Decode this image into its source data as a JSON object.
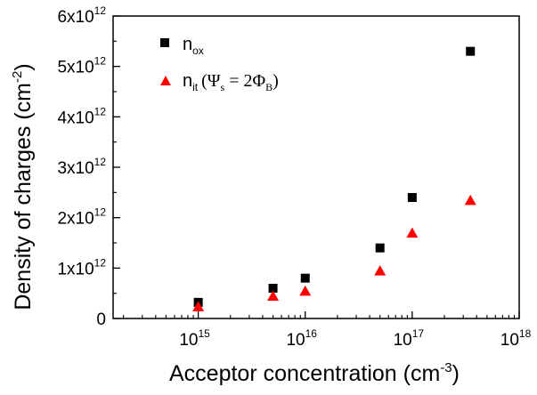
{
  "chart_data": {
    "type": "scatter",
    "xlabel": "Acceptor concentration",
    "xlabel_unit_base": "(cm",
    "xlabel_unit_exp": "-3",
    "xlabel_unit_close": ")",
    "ylabel": "Density of charges",
    "ylabel_unit_base": "(cm",
    "ylabel_unit_exp": "-2",
    "ylabel_unit_close": ")",
    "x_scale": "log",
    "xlim": [
      160000000000000.0,
      1e+18
    ],
    "ylim": [
      0,
      6000000000000.0
    ],
    "x_ticks": [
      {
        "value": 1000000000000000.0,
        "base": "10",
        "exp": "15"
      },
      {
        "value": 1e+16,
        "base": "10",
        "exp": "16"
      },
      {
        "value": 1e+17,
        "base": "10",
        "exp": "17"
      },
      {
        "value": 1e+18,
        "base": "10",
        "exp": "18"
      }
    ],
    "y_ticks": [
      {
        "value": 0,
        "label": "0",
        "exp": ""
      },
      {
        "value": 1000000000000.0,
        "label": "1x10",
        "exp": "12"
      },
      {
        "value": 2000000000000.0,
        "label": "2x10",
        "exp": "12"
      },
      {
        "value": 3000000000000.0,
        "label": "3x10",
        "exp": "12"
      },
      {
        "value": 4000000000000.0,
        "label": "4x10",
        "exp": "12"
      },
      {
        "value": 5000000000000.0,
        "label": "5x10",
        "exp": "12"
      },
      {
        "value": 6000000000000.0,
        "label": "6x10",
        "exp": "12"
      }
    ],
    "legend_position": "top-left",
    "series": [
      {
        "name": "n_ox",
        "legend_main": "n",
        "legend_sub": "ox",
        "marker": "square",
        "color": "#000000",
        "points": [
          {
            "x": 1000000000000000.0,
            "y": 320000000000.0
          },
          {
            "x": 5000000000000000.0,
            "y": 600000000000.0
          },
          {
            "x": 1e+16,
            "y": 800000000000.0
          },
          {
            "x": 5e+16,
            "y": 1400000000000.0
          },
          {
            "x": 1e+17,
            "y": 2400000000000.0
          },
          {
            "x": 3.5e+17,
            "y": 5300000000000.0
          }
        ]
      },
      {
        "name": "n_it (Ψs = 2ΦB)",
        "legend_main": "n",
        "legend_sub": "it",
        "legend_cond_open": "(Ψ",
        "legend_cond_sub1": "s",
        "legend_cond_mid": " = 2Φ",
        "legend_cond_sub2": "B",
        "legend_cond_close": ")",
        "marker": "triangle",
        "color": "#ff0000",
        "points": [
          {
            "x": 1000000000000000.0,
            "y": 240000000000.0
          },
          {
            "x": 5000000000000000.0,
            "y": 450000000000.0
          },
          {
            "x": 1e+16,
            "y": 550000000000.0
          },
          {
            "x": 5e+16,
            "y": 950000000000.0
          },
          {
            "x": 1e+17,
            "y": 1700000000000.0
          },
          {
            "x": 3.5e+17,
            "y": 2350000000000.0
          }
        ]
      }
    ]
  }
}
